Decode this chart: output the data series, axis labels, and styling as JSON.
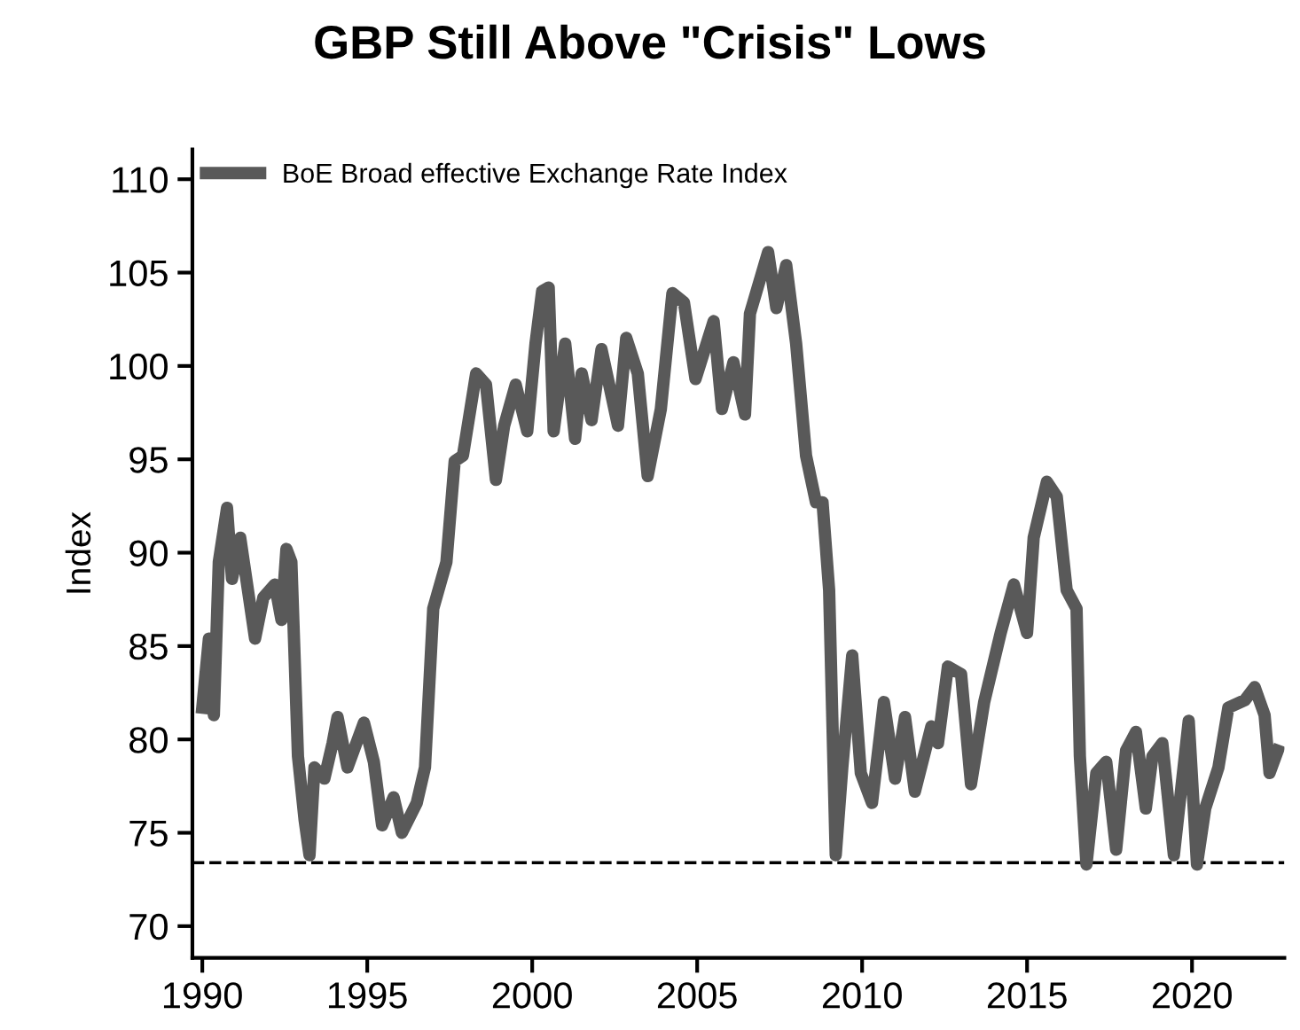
{
  "chart_data": {
    "type": "line",
    "title": "GBP Still Above \"Crisis\" Lows",
    "ylabel": "Index",
    "series": [
      {
        "name": "BoE Broad effective Exchange Rate Index",
        "color": "#595959",
        "x": [
          1990.0,
          1990.2,
          1990.35,
          1990.5,
          1990.75,
          1990.9,
          1991.15,
          1991.6,
          1991.85,
          1992.2,
          1992.4,
          1992.55,
          1992.7,
          1992.9,
          1993.1,
          1993.25,
          1993.4,
          1993.7,
          1993.95,
          1994.1,
          1994.4,
          1994.9,
          1995.2,
          1995.45,
          1995.8,
          1996.05,
          1996.5,
          1996.75,
          1997.0,
          1997.4,
          1997.65,
          1997.9,
          1998.3,
          1998.6,
          1998.9,
          1999.15,
          1999.5,
          1999.85,
          2000.1,
          2000.3,
          2000.5,
          2000.65,
          2001.0,
          2001.3,
          2001.5,
          2001.8,
          2002.1,
          2002.6,
          2002.85,
          2003.2,
          2003.5,
          2003.9,
          2004.25,
          2004.6,
          2004.95,
          2005.5,
          2005.75,
          2006.1,
          2006.45,
          2006.6,
          2007.15,
          2007.4,
          2007.7,
          2008.0,
          2008.3,
          2008.6,
          2008.8,
          2009.0,
          2009.2,
          2009.4,
          2009.7,
          2009.96,
          2010.3,
          2010.66,
          2011.0,
          2011.3,
          2011.6,
          2012.1,
          2012.3,
          2012.6,
          2013.0,
          2013.3,
          2013.7,
          2014.2,
          2014.6,
          2015.0,
          2015.2,
          2015.6,
          2015.9,
          2016.2,
          2016.5,
          2016.6,
          2016.8,
          2017.1,
          2017.4,
          2017.7,
          2018.0,
          2018.3,
          2018.6,
          2018.8,
          2019.1,
          2019.45,
          2019.9,
          2020.15,
          2020.4,
          2020.8,
          2021.1,
          2021.6,
          2021.9,
          2022.2,
          2022.35,
          2022.6
        ],
        "values": [
          81.7,
          85.4,
          81.3,
          89.5,
          92.4,
          88.6,
          90.8,
          85.4,
          87.6,
          88.3,
          86.4,
          90.2,
          89.5,
          79.1,
          75.7,
          73.8,
          78.5,
          77.9,
          79.8,
          81.2,
          78.5,
          80.9,
          78.8,
          75.4,
          76.9,
          75.0,
          76.6,
          78.5,
          87.0,
          89.5,
          94.9,
          95.2,
          99.6,
          99.0,
          93.9,
          96.8,
          99.0,
          96.5,
          101.2,
          104.0,
          104.2,
          96.5,
          101.2,
          96.1,
          99.6,
          97.1,
          100.9,
          96.8,
          101.5,
          99.6,
          94.1,
          97.7,
          103.9,
          103.4,
          99.3,
          102.4,
          97.7,
          100.2,
          97.4,
          102.8,
          106.1,
          103.1,
          105.4,
          101.2,
          95.2,
          92.7,
          92.7,
          88.0,
          73.8,
          78.5,
          84.5,
          78.2,
          76.6,
          82.0,
          77.9,
          81.2,
          77.2,
          80.7,
          79.8,
          83.9,
          83.5,
          77.6,
          82.0,
          85.7,
          88.3,
          85.7,
          90.8,
          93.8,
          93.0,
          88.0,
          87.0,
          79.1,
          73.3,
          78.2,
          78.8,
          74.1,
          79.4,
          80.4,
          76.3,
          79.1,
          79.8,
          73.8,
          81.0,
          73.3,
          76.3,
          78.5,
          81.7,
          82.1,
          82.8,
          81.3,
          78.2,
          79.4
        ]
      }
    ],
    "xlim": [
      1989.7,
      2022.8
    ],
    "xticks": [
      1990,
      1995,
      2000,
      2005,
      2010,
      2015,
      2020
    ],
    "ylim": [
      68.3,
      111.6
    ],
    "yticks": [
      70,
      75,
      80,
      85,
      90,
      95,
      100,
      105,
      110
    ],
    "ref_lines": [
      {
        "axis": "y",
        "value": 73.4,
        "line_style": "dashed",
        "color": "#000000"
      }
    ],
    "grid": false,
    "legend": "top left",
    "line_style": "solid",
    "marker": "none"
  }
}
